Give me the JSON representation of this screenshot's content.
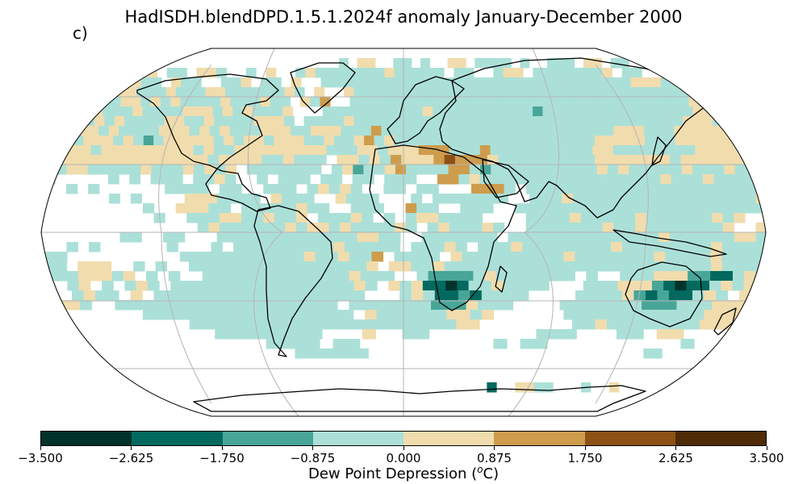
{
  "title": "HadISDH.blendDPD.1.5.1.2024f anomaly January-December 2000",
  "panel_label": "c)",
  "colorbar": {
    "label": "Dew Point Depression (",
    "label_sup": "o",
    "label_suffix": "C)",
    "colors": [
      "#01332b",
      "#03695f",
      "#48a699",
      "#abe0d8",
      "#f1dcad",
      "#cd9d4d",
      "#8d5116",
      "#4f2b07"
    ],
    "ticks": [
      "−3.500",
      "−2.625",
      "−1.750",
      "−0.875",
      "0.000",
      "0.875",
      "1.750",
      "2.625",
      "3.500"
    ]
  },
  "map": {
    "projection": "Robinson",
    "gridlines": true,
    "coastlines": true,
    "grid_color": "#b4b4b4"
  }
}
